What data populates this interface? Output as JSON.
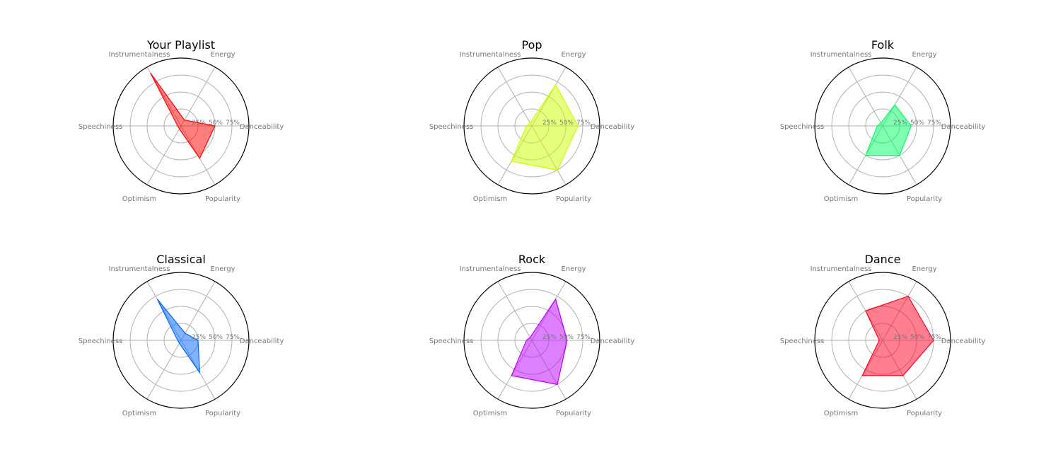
{
  "chart_data": [
    {
      "type": "radar",
      "title": "Your Playlist",
      "axes": [
        "Danceability",
        "Energy",
        "Instrumentalness",
        "Speechiness",
        "Optimism",
        "Popularity"
      ],
      "ticks": [
        "25%",
        "50%",
        "75%"
      ],
      "rlim": [
        0,
        1
      ],
      "color": "#ff0000",
      "values": [
        0.5,
        0.1,
        0.9,
        0.05,
        0.05,
        0.55
      ]
    },
    {
      "type": "radar",
      "title": "Pop",
      "axes": [
        "Danceability",
        "Energy",
        "Instrumentalness",
        "Speechiness",
        "Optimism",
        "Popularity"
      ],
      "ticks": [
        "25%",
        "50%",
        "75%"
      ],
      "rlim": [
        0,
        1
      ],
      "color": "#ccff00",
      "values": [
        0.68,
        0.7,
        0.05,
        0.08,
        0.6,
        0.75
      ]
    },
    {
      "type": "radar",
      "title": "Folk",
      "axes": [
        "Danceability",
        "Energy",
        "Instrumentalness",
        "Speechiness",
        "Optimism",
        "Popularity"
      ],
      "ticks": [
        "25%",
        "50%",
        "75%"
      ],
      "rlim": [
        0,
        1
      ],
      "color": "#00ff66",
      "values": [
        0.42,
        0.36,
        0.05,
        0.08,
        0.5,
        0.5
      ]
    },
    {
      "type": "radar",
      "title": "Classical",
      "axes": [
        "Danceability",
        "Energy",
        "Instrumentalness",
        "Speechiness",
        "Optimism",
        "Popularity"
      ],
      "ticks": [
        "25%",
        "50%",
        "75%"
      ],
      "rlim": [
        0,
        1
      ],
      "color": "#0066ff",
      "values": [
        0.25,
        0.12,
        0.7,
        0.05,
        0.05,
        0.55
      ]
    },
    {
      "type": "radar",
      "title": "Rock",
      "axes": [
        "Danceability",
        "Energy",
        "Instrumentalness",
        "Speechiness",
        "Optimism",
        "Popularity"
      ],
      "ticks": [
        "25%",
        "50%",
        "75%"
      ],
      "rlim": [
        0,
        1
      ],
      "color": "#bb00ff",
      "values": [
        0.52,
        0.7,
        0.05,
        0.08,
        0.6,
        0.75
      ]
    },
    {
      "type": "radar",
      "title": "Dance",
      "axes": [
        "Danceability",
        "Energy",
        "Instrumentalness",
        "Speechiness",
        "Optimism",
        "Popularity"
      ],
      "ticks": [
        "25%",
        "50%",
        "75%"
      ],
      "rlim": [
        0,
        1
      ],
      "color": "#ff0022",
      "values": [
        0.75,
        0.75,
        0.5,
        0.05,
        0.6,
        0.6
      ]
    }
  ]
}
